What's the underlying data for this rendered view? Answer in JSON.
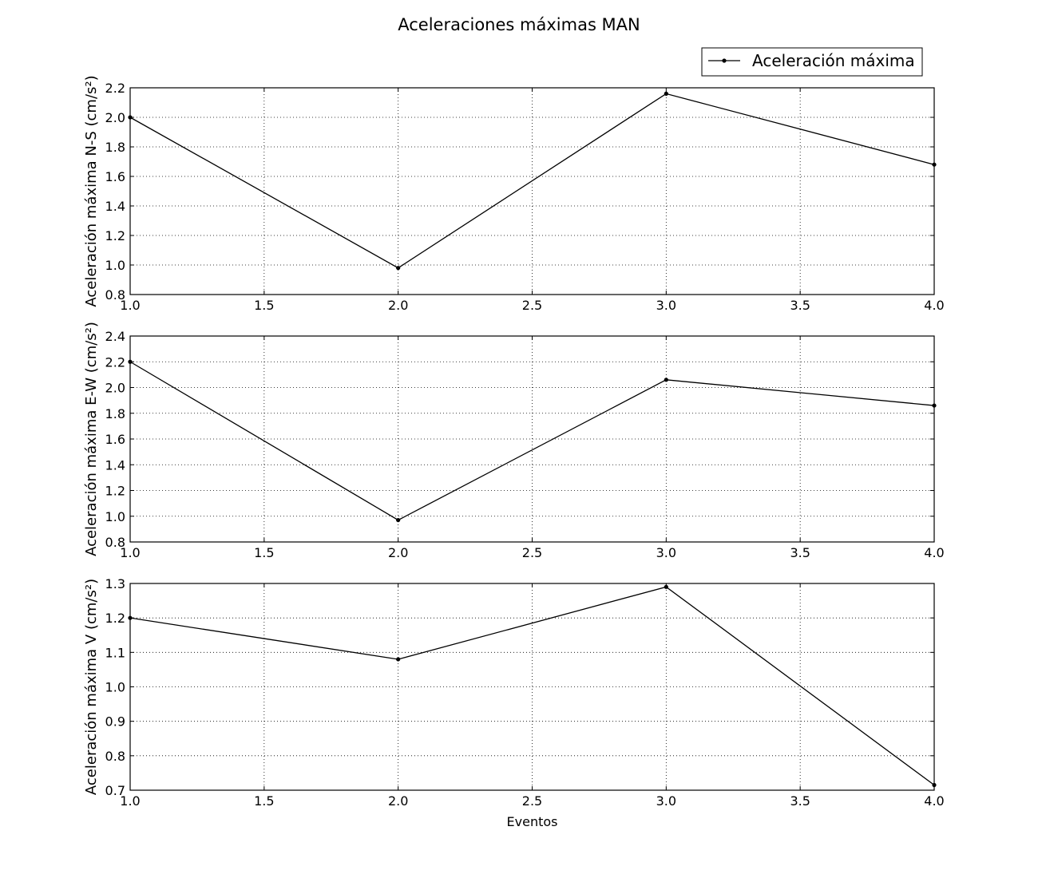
{
  "figure": {
    "title": "Aceleraciones máximas MAN",
    "legend_label": "Aceleración máxima"
  },
  "chart_data": [
    {
      "type": "line",
      "title": "",
      "xlabel": "",
      "ylabel": "Aceleración máxima N-S (cm/s²)",
      "xlim": [
        1.0,
        4.0
      ],
      "ylim": [
        0.8,
        2.2
      ],
      "xticks": [
        "1.0",
        "1.5",
        "2.0",
        "2.5",
        "3.0",
        "3.5",
        "4.0"
      ],
      "yticks": [
        "0.8",
        "1.0",
        "1.2",
        "1.4",
        "1.6",
        "1.8",
        "2.0",
        "2.2"
      ],
      "grid": true,
      "legend": "top-right",
      "series": [
        {
          "name": "Aceleración máxima",
          "x": [
            1,
            2,
            3,
            4
          ],
          "values": [
            2.0,
            0.98,
            2.16,
            1.68
          ]
        }
      ]
    },
    {
      "type": "line",
      "title": "",
      "xlabel": "",
      "ylabel": "Aceleración máxima E-W (cm/s²)",
      "xlim": [
        1.0,
        4.0
      ],
      "ylim": [
        0.8,
        2.4
      ],
      "xticks": [
        "1.0",
        "1.5",
        "2.0",
        "2.5",
        "3.0",
        "3.5",
        "4.0"
      ],
      "yticks": [
        "0.8",
        "1.0",
        "1.2",
        "1.4",
        "1.6",
        "1.8",
        "2.0",
        "2.2",
        "2.4"
      ],
      "grid": true,
      "series": [
        {
          "name": "Aceleración máxima",
          "x": [
            1,
            2,
            3,
            4
          ],
          "values": [
            2.2,
            0.97,
            2.06,
            1.86
          ]
        }
      ]
    },
    {
      "type": "line",
      "title": "",
      "xlabel": "Eventos",
      "ylabel": "Aceleración máxima V (cm/s²)",
      "xlim": [
        1.0,
        4.0
      ],
      "ylim": [
        0.7,
        1.3
      ],
      "xticks": [
        "1.0",
        "1.5",
        "2.0",
        "2.5",
        "3.0",
        "3.5",
        "4.0"
      ],
      "yticks": [
        "0.7",
        "0.8",
        "0.9",
        "1.0",
        "1.1",
        "1.2",
        "1.3"
      ],
      "grid": true,
      "series": [
        {
          "name": "Aceleración máxima",
          "x": [
            1,
            2,
            3,
            4
          ],
          "values": [
            1.2,
            1.08,
            1.29,
            0.715
          ]
        }
      ]
    }
  ],
  "colors": {
    "line": "#000000",
    "grid": "#000000",
    "background": "#ffffff"
  }
}
